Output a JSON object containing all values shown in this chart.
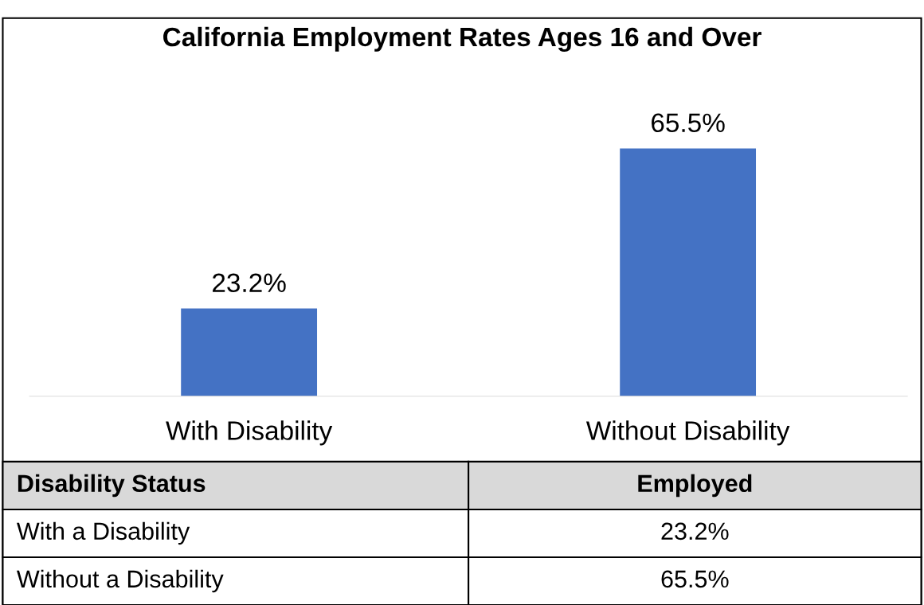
{
  "chart_data": {
    "type": "bar",
    "title": "California Employment Rates Ages 16 and Over",
    "categories": [
      "With Disability",
      "Without Disability"
    ],
    "values": [
      23.2,
      65.5
    ],
    "color": "#4472c4",
    "value_labels": [
      "23.2%",
      "65.5%"
    ],
    "annotations": [
      "Disability Status",
      "Employed",
      "With a Disability",
      "Without a Disability"
    ]
  }
}
